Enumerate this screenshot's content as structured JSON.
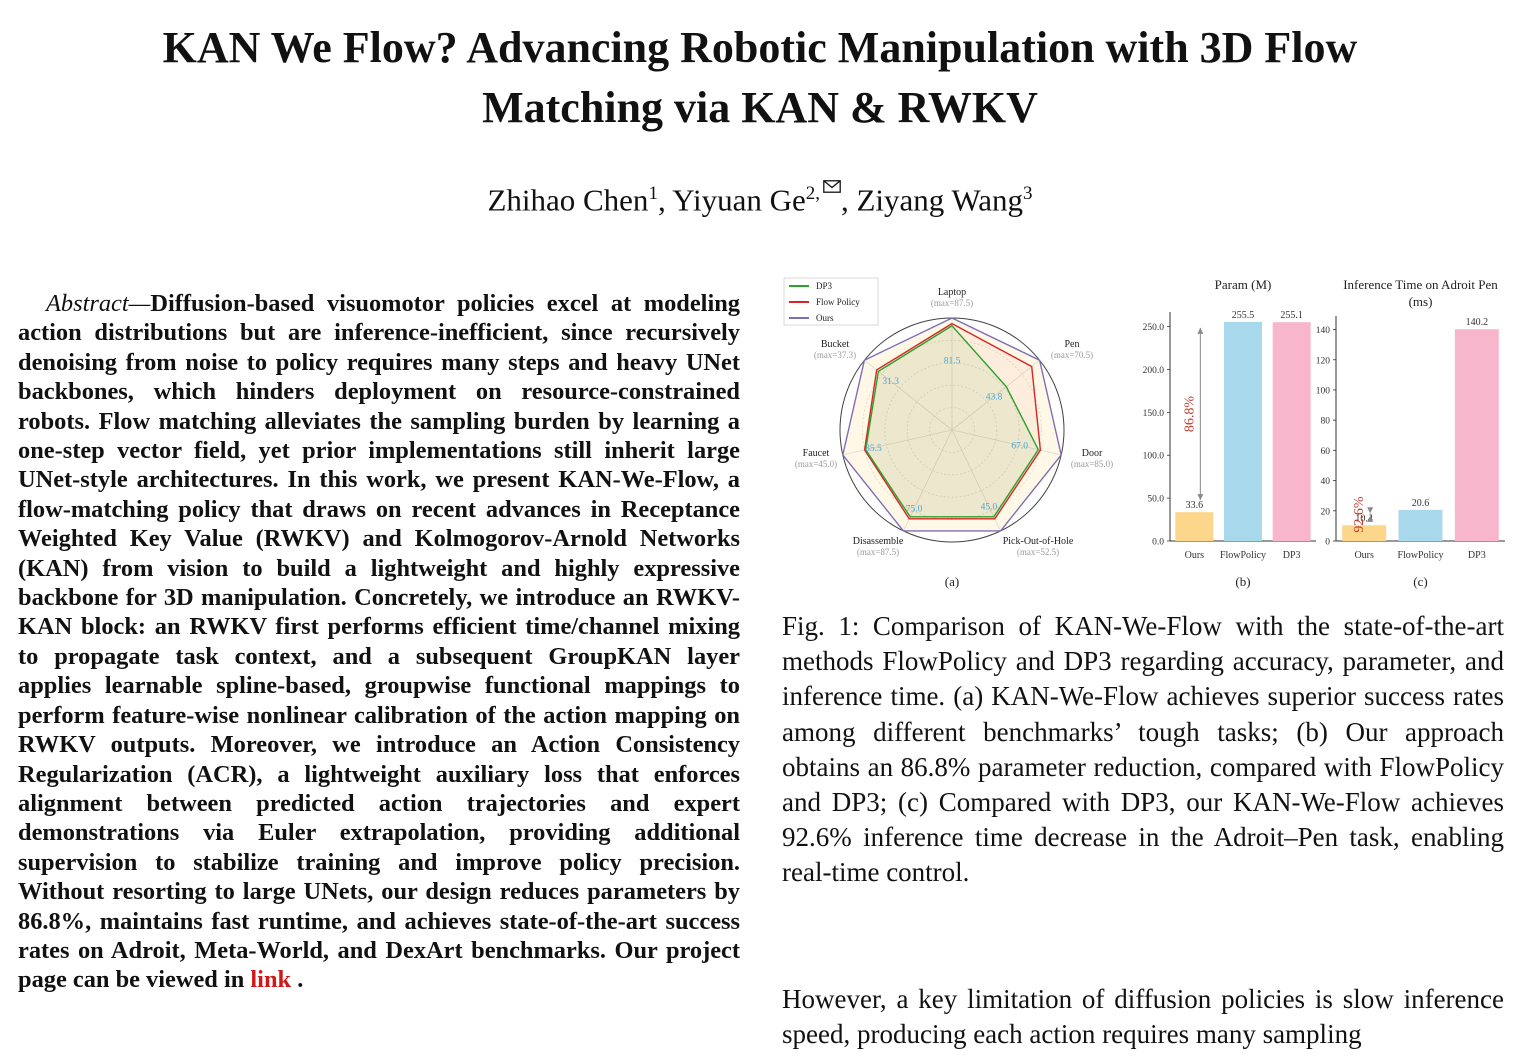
{
  "title_line1": "KAN We Flow? Advancing Robotic Manipulation with 3D Flow",
  "title_line2": "Matching via KAN & RWKV",
  "authors": {
    "a1": "Zhihao Chen",
    "a1_sup": "1",
    "a2": "Yiyuan Ge",
    "a2_sup": "2,",
    "a3": "Ziyang Wang",
    "a3_sup": "3",
    "sep": ", ",
    "mail_icon": "envelope-icon"
  },
  "abstract": {
    "lead": "Abstract—",
    "text": "Diffusion-based visuomotor policies excel at mod­eling action distributions but are inference-inefficient, since recursively denoising from noise to policy requires many steps and heavy UNet backbones, which hinders deployment on resource-constrained robots. Flow matching alleviates the sampling burden by learning a one-step vector field, yet prior implementations still inherit large UNet-style architectures. In this work, we present KAN-We-Flow, a flow-matching policy that draws on recent advances in Receptance Weighted Key Value (RWKV) and Kolmogorov-Arnold Networks (KAN) from vision to build a lightweight and highly expressive backbone for 3D manipulation. Concretely, we introduce an RWKV-KAN block: an RWKV first performs efficient time/channel mixing to propagate task context, and a subsequent GroupKAN layer applies learnable spline-based, groupwise functional mappings to perform feature-wise nonlinear calibration of the action mapping on RWKV outputs. Moreover, we introduce an Action Consistency Regularization (ACR), a lightweight auxiliary loss that enforces alignment between predicted action trajectories and expert demonstrations via Euler extrapolation, providing additional supervision to stabilize training and improve pol­icy precision. Without resorting to large UNets, our design reduces parameters by 86.8%, maintains fast runtime, and achieves state-of-the-art success rates on Adroit, Meta-World, and DexArt benchmarks. Our project page can be viewed in",
    "link": "link",
    "end": " ."
  },
  "chart_data": [
    {
      "type": "radar",
      "panel_label": "(a)",
      "axes": [
        {
          "name": "Laptop",
          "max": "(max=87.5)"
        },
        {
          "name": "Pen",
          "max": "(max=70.5)"
        },
        {
          "name": "Door",
          "max": "(max=85.0)"
        },
        {
          "name": "Pick-Out-of-Hole",
          "max": "(max=52.5)"
        },
        {
          "name": "Disassemble",
          "max": "(max=87.5)"
        },
        {
          "name": "Faucet",
          "max": "(max=45.0)"
        },
        {
          "name": "Bucket",
          "max": "(max=37.3)"
        }
      ],
      "value_labels": [
        "81.5",
        "43.8",
        "67.0",
        "45.0",
        "75.0",
        "35.5",
        "31.3"
      ],
      "series": [
        {
          "name": "DP3",
          "color": "#2ca02c",
          "fractions": [
            0.93,
            0.62,
            0.79,
            0.86,
            0.86,
            0.79,
            0.84
          ]
        },
        {
          "name": "Flow Policy",
          "color": "#d62728",
          "fractions": [
            0.95,
            0.91,
            0.81,
            0.88,
            0.88,
            0.8,
            0.86
          ]
        },
        {
          "name": "Ours",
          "color": "#7e6fb5",
          "fractions": [
            1.0,
            1.0,
            1.0,
            1.0,
            1.0,
            1.0,
            1.0
          ]
        }
      ]
    },
    {
      "type": "bar",
      "panel_label": "(b)",
      "title": "Param (M)",
      "categories": [
        "Ours",
        "FlowPolicy",
        "DP3"
      ],
      "values": [
        33.6,
        255.5,
        255.1
      ],
      "value_labels": [
        "33.6",
        "255.5",
        "255.1"
      ],
      "colors": [
        "#fcd68a",
        "#a8d8ec",
        "#f7b6cc"
      ],
      "ylim": [
        0,
        260
      ],
      "yticks": [
        "0.0",
        "50.0",
        "100.0",
        "150.0",
        "200.0",
        "250.0"
      ],
      "annotation": "86.8%"
    },
    {
      "type": "bar",
      "panel_label": "(c)",
      "title": "Inference Time on Adroit Pen",
      "title2": "(ms)",
      "categories": [
        "Ours",
        "FlowPolicy",
        "DP3"
      ],
      "values": [
        10.4,
        20.6,
        140.2
      ],
      "value_labels": [
        "10.4",
        "20.6",
        "140.2"
      ],
      "colors": [
        "#fcd68a",
        "#a8d8ec",
        "#f7b6cc"
      ],
      "ylim": [
        0,
        145
      ],
      "yticks": [
        "0",
        "20",
        "40",
        "60",
        "80",
        "100",
        "120",
        "140"
      ],
      "annotation": "92.6%"
    }
  ],
  "caption": "Fig. 1: Comparison of KAN-We-Flow with the state-of-the-art methods FlowPolicy and DP3 regarding accuracy, parameter, and inference time. (a) KAN-We-Flow achieves superior success rates among different benchmarks’ tough tasks; (b) Our approach obtains an 86.8% parameter reduc­tion, compared with FlowPolicy and DP3; (c) Compared with DP3, our KAN-We-Flow achieves 92.6% inference time decrease in the Adroit–Pen task, enabling real-time control.",
  "body_text": "However, a key limitation of diffusion policies is slow infer­ence speed, producing each action requires many sampling"
}
